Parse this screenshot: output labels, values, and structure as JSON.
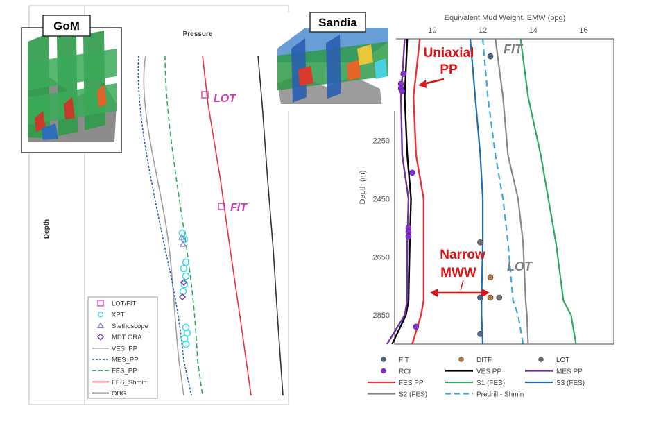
{
  "left_panel": {
    "title": "Pressure",
    "ylabel": "Depth",
    "inset_label": "GoM",
    "lot_label": "LOT",
    "fit_label": "FIT",
    "legend": [
      "LOT/FIT",
      "XPT",
      "Stethoscope",
      "MDT ORA",
      "VES_PP",
      "MES_PP",
      "FES_PP",
      "FES_Shmin",
      "OBG"
    ]
  },
  "right_panel": {
    "inset_label": "Sandia",
    "xlabel": "Equivalent Mud Weight, EMW (ppg)",
    "ylabel": "Depth (m)",
    "xticks": [
      "10",
      "12",
      "14",
      "16"
    ],
    "yticks": [
      "2250",
      "2450",
      "2650",
      "2850"
    ],
    "annot_uniaxial": "Uniaxial",
    "annot_pp": "PP",
    "annot_narrow": "Narrow",
    "annot_mww": "MWW",
    "annot_fit": "FIT",
    "annot_lot": "LOT",
    "legend": [
      "FIT",
      "DITF",
      "LOT",
      "RCI",
      "VES PP",
      "MES PP",
      "FES PP",
      "S1 (FES)",
      "S3 (FES)",
      "S2 (FES)",
      "Predrill - Shmin"
    ]
  },
  "colors": {
    "ves": "#a0a0a0",
    "mes": "#2f5fb0",
    "fes_pp": "#2eaa60",
    "fes_shmin": "#e8323c",
    "obg": "#333333",
    "lotfit": "#d03cb0",
    "xpt": "#40d8e8",
    "steth": "#8080d0",
    "mdt": "#7030a0",
    "r_ves": "#000000",
    "r_mes": "#7030a0",
    "r_fes": "#e8323c",
    "r_s1": "#2eaa60",
    "r_s3": "#1f6fb0",
    "r_s2": "#888888",
    "r_predrill": "#3aa8d8",
    "r_fit": "#4a6a8a",
    "r_ditf": "#b87840",
    "r_lot": "#707070",
    "r_rci": "#8a2be2",
    "annot_red": "#dd1111"
  },
  "chart_data": [
    {
      "type": "line",
      "title": "Pressure",
      "xlabel": "Pressure",
      "ylabel": "Depth",
      "series": [
        {
          "name": "VES_PP"
        },
        {
          "name": "MES_PP"
        },
        {
          "name": "FES_PP"
        },
        {
          "name": "FES_Shmin"
        },
        {
          "name": "OBG"
        }
      ],
      "points": [
        {
          "name": "LOT/FIT",
          "labels": [
            "LOT",
            "FIT"
          ]
        },
        {
          "name": "XPT"
        },
        {
          "name": "Stethoscope"
        },
        {
          "name": "MDT ORA"
        }
      ]
    },
    {
      "type": "line",
      "xlabel": "Equivalent Mud Weight, EMW (ppg)",
      "ylabel": "Depth (m)",
      "xlim": [
        8.5,
        17.2
      ],
      "ylim": [
        1900,
        2950
      ],
      "series": [
        {
          "name": "VES PP",
          "x": [
            9.0,
            8.9,
            9.0,
            9.15,
            9.1,
            9.05,
            8.95,
            8.4
          ],
          "y": [
            1900,
            2100,
            2300,
            2450,
            2600,
            2800,
            2850,
            2950
          ]
        },
        {
          "name": "MES PP",
          "x": [
            8.9,
            8.75,
            8.8,
            9.05,
            9.0,
            9.0,
            8.9,
            8.2
          ],
          "y": [
            1900,
            2100,
            2300,
            2450,
            2600,
            2800,
            2850,
            2950
          ]
        },
        {
          "name": "FES PP",
          "x": [
            9.5,
            9.25,
            9.35,
            9.65,
            9.65,
            9.65,
            9.55,
            9.2
          ],
          "y": [
            1900,
            2100,
            2300,
            2450,
            2600,
            2800,
            2850,
            2950
          ]
        },
        {
          "name": "S1 (FES)",
          "x": [
            13.5,
            13.8,
            14.3,
            14.6,
            14.9,
            15.2,
            15.5,
            15.7
          ],
          "y": [
            1900,
            2100,
            2300,
            2450,
            2600,
            2800,
            2850,
            2950
          ]
        },
        {
          "name": "S3 (FES)",
          "x": [
            11.5,
            11.7,
            11.9,
            12.0,
            12.0,
            11.95,
            11.95,
            12.0
          ],
          "y": [
            1900,
            2100,
            2300,
            2450,
            2600,
            2800,
            2850,
            2950
          ]
        },
        {
          "name": "S2 (FES)",
          "x": [
            12.5,
            12.8,
            13.0,
            13.4,
            13.6,
            13.7,
            13.75,
            13.8
          ],
          "y": [
            1900,
            2100,
            2300,
            2450,
            2600,
            2800,
            2850,
            2950
          ]
        },
        {
          "name": "Predrill - Shmin",
          "x": [
            12.0,
            12.2,
            12.5,
            12.8,
            13.0,
            13.2,
            13.4,
            13.6
          ],
          "y": [
            1900,
            2100,
            2300,
            2450,
            2600,
            2800,
            2850,
            2950
          ]
        }
      ],
      "points": [
        {
          "name": "FIT",
          "x": [
            12.3,
            11.9,
            11.9
          ],
          "y": [
            1960,
            2790,
            2915
          ]
        },
        {
          "name": "DITF",
          "x": [
            12.3,
            12.3
          ],
          "y": [
            2720,
            2790
          ]
        },
        {
          "name": "LOT",
          "x": [
            11.9,
            12.65
          ],
          "y": [
            2600,
            2790
          ]
        },
        {
          "name": "RCI",
          "x": [
            8.85,
            8.75,
            8.75,
            8.8,
            9.2,
            9.05,
            9.05,
            9.05,
            9.35
          ],
          "y": [
            2020,
            2055,
            2070,
            2080,
            2360,
            2550,
            2565,
            2580,
            2890
          ]
        }
      ]
    }
  ]
}
